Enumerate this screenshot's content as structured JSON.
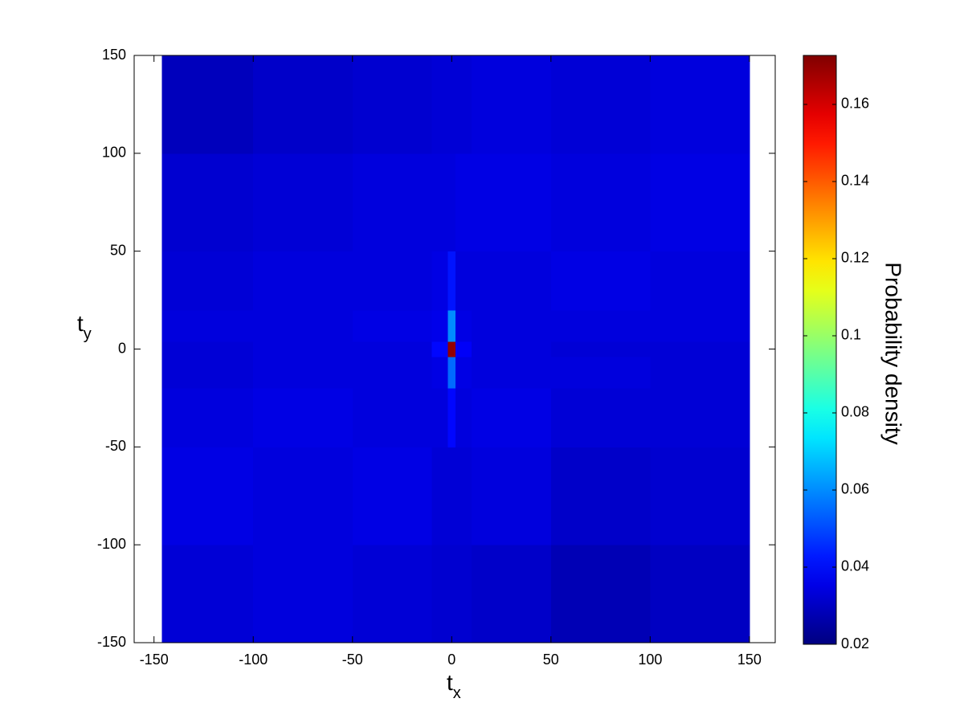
{
  "chart_data": {
    "type": "heatmap",
    "xlabel": "t",
    "xlabel_sub": "x",
    "ylabel": "t",
    "ylabel_sub": "y",
    "colorbar_label": "Probability density",
    "colormap": "jet",
    "x_edges": [
      -146,
      -100,
      -50,
      -10,
      -2,
      2,
      10,
      50,
      100,
      150
    ],
    "y_edges": [
      -150,
      -100,
      -50,
      -20,
      -4,
      4,
      20,
      50,
      100,
      150
    ],
    "z": [
      [
        0.033,
        0.034,
        0.033,
        0.032,
        0.032,
        0.032,
        0.031,
        0.028,
        0.03
      ],
      [
        0.035,
        0.034,
        0.035,
        0.033,
        0.033,
        0.033,
        0.034,
        0.031,
        0.032
      ],
      [
        0.034,
        0.035,
        0.034,
        0.034,
        0.04,
        0.034,
        0.035,
        0.033,
        0.033
      ],
      [
        0.033,
        0.034,
        0.034,
        0.035,
        0.055,
        0.035,
        0.034,
        0.034,
        0.033
      ],
      [
        0.033,
        0.034,
        0.034,
        0.04,
        0.17,
        0.038,
        0.034,
        0.033,
        0.033
      ],
      [
        0.034,
        0.034,
        0.035,
        0.036,
        0.06,
        0.035,
        0.034,
        0.034,
        0.034
      ],
      [
        0.033,
        0.034,
        0.034,
        0.035,
        0.042,
        0.034,
        0.034,
        0.035,
        0.034
      ],
      [
        0.032,
        0.033,
        0.034,
        0.034,
        0.034,
        0.035,
        0.035,
        0.034,
        0.035
      ],
      [
        0.029,
        0.031,
        0.032,
        0.033,
        0.033,
        0.033,
        0.034,
        0.033,
        0.034
      ]
    ],
    "xlim": [
      -160,
      163
    ],
    "ylim": [
      -150,
      150
    ],
    "xticks": [
      -150,
      -100,
      -50,
      0,
      50,
      100,
      150
    ],
    "yticks": [
      -150,
      -100,
      -50,
      0,
      50,
      100,
      150
    ],
    "clim": [
      0.02,
      0.1727
    ],
    "cticks": [
      0.02,
      0.04,
      0.06,
      0.08,
      0.1,
      0.12,
      0.14,
      0.16
    ]
  }
}
